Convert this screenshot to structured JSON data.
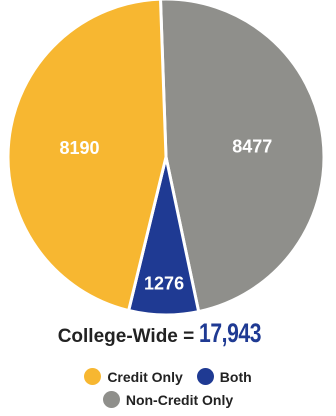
{
  "chart_data": {
    "type": "pie",
    "categories": [
      "Credit Only",
      "Both",
      "Non-Credit Only"
    ],
    "values": [
      8190,
      1276,
      8477
    ],
    "colors": [
      "#f7b731",
      "#1f3a93",
      "#8f8f8b"
    ],
    "value_labels": [
      "8190",
      "1276",
      "8477"
    ],
    "legend": [
      "Credit Only",
      "Both",
      "Non-Credit Only"
    ],
    "legend_placement": "bottom",
    "title": "",
    "total_label": "College-Wide =",
    "total_value": "17,943"
  }
}
